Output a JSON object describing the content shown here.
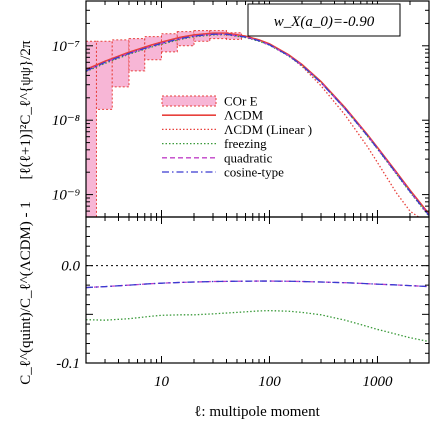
{
  "annotation": {
    "text": "w_X(a_0)=-0.90"
  },
  "chart_data": [
    {
      "type": "line",
      "panel": "top",
      "x_scale": "log",
      "y_scale": "log",
      "xlim": [
        2,
        3000
      ],
      "ylim": [
        5e-10,
        4e-07
      ],
      "ylabel": "[ℓ(ℓ+1)]²C_ℓ^{ψψ}/2π",
      "y_ticks": [
        {
          "value": 1e-07,
          "label": "10⁻⁷"
        },
        {
          "value": 1e-08,
          "label": "10⁻⁸"
        },
        {
          "value": 1e-09,
          "label": "10⁻⁹"
        }
      ],
      "legend": {
        "placement": "center-right",
        "entries": [
          "COr E",
          "ΛCDM",
          "ΛCDM (Linear )",
          "freezing",
          "quadratic",
          "cosine-type"
        ]
      },
      "series": [
        {
          "name": "ΛCDM",
          "color": "#e8413c",
          "style": "solid",
          "x": [
            2,
            3,
            5,
            8,
            10,
            15,
            20,
            30,
            40,
            60,
            80,
            100,
            150,
            200,
            300,
            500,
            800,
            1000,
            1500,
            2000,
            3000
          ],
          "y": [
            4.8e-08,
            6.2e-08,
            8.2e-08,
            1.02e-07,
            1.12e-07,
            1.3e-07,
            1.4e-07,
            1.48e-07,
            1.48e-07,
            1.35e-07,
            1.2e-07,
            1.06e-07,
            7.6e-08,
            5.6e-08,
            3.3e-08,
            1.48e-08,
            6.5e-09,
            4.3e-09,
            2e-09,
            1.15e-09,
            5.5e-10
          ]
        },
        {
          "name": "ΛCDM (Linear )",
          "color": "#e8413c",
          "style": "dotted",
          "x": [
            2,
            3,
            5,
            8,
            10,
            15,
            20,
            30,
            40,
            60,
            80,
            100,
            150,
            200,
            300,
            500,
            800,
            1000,
            1500,
            2000,
            3000
          ],
          "y": [
            4.8e-08,
            6.2e-08,
            8.2e-08,
            1.02e-07,
            1.12e-07,
            1.3e-07,
            1.4e-07,
            1.48e-07,
            1.48e-07,
            1.35e-07,
            1.2e-07,
            1.05e-07,
            7.4e-08,
            5.3e-08,
            2.9e-08,
            1.18e-08,
            4.5e-09,
            2.7e-09,
            1.05e-09,
            6e-10,
            4e-10
          ]
        },
        {
          "name": "freezing",
          "color": "#3a9a3a",
          "style": "dotted",
          "x": [
            2,
            3,
            5,
            8,
            10,
            15,
            20,
            30,
            40,
            60,
            80,
            100,
            150,
            200,
            300,
            500,
            800,
            1000,
            1500,
            2000,
            3000
          ],
          "y": [
            4.5e-08,
            5.8e-08,
            7.7e-08,
            9.6e-08,
            1.05e-07,
            1.22e-07,
            1.32e-07,
            1.4e-07,
            1.41e-07,
            1.29e-07,
            1.15e-07,
            1.02e-07,
            7.3e-08,
            5.4e-08,
            3.2e-08,
            1.42e-08,
            6.2e-09,
            4.1e-09,
            1.88e-09,
            1.08e-09,
            5.1e-10
          ]
        },
        {
          "name": "quadratic",
          "color": "#c040c8",
          "style": "dashed",
          "x": [
            2,
            3,
            5,
            8,
            10,
            15,
            20,
            30,
            40,
            60,
            80,
            100,
            150,
            200,
            300,
            500,
            800,
            1000,
            1500,
            2000,
            3000
          ],
          "y": [
            4.6e-08,
            6e-08,
            7.9e-08,
            9.8e-08,
            1.08e-07,
            1.25e-07,
            1.35e-07,
            1.43e-07,
            1.43e-07,
            1.31e-07,
            1.17e-07,
            1.03e-07,
            7.4e-08,
            5.45e-08,
            3.2e-08,
            1.43e-08,
            6.3e-09,
            4.15e-09,
            1.92e-09,
            1.1e-09,
            5.25e-10
          ]
        },
        {
          "name": "cosine-type",
          "color": "#3a3ad0",
          "style": "dashdot",
          "x": [
            2,
            3,
            5,
            8,
            10,
            15,
            20,
            30,
            40,
            60,
            80,
            100,
            150,
            200,
            300,
            500,
            800,
            1000,
            1500,
            2000,
            3000
          ],
          "y": [
            4.6e-08,
            6e-08,
            7.9e-08,
            9.8e-08,
            1.08e-07,
            1.25e-07,
            1.35e-07,
            1.43e-07,
            1.43e-07,
            1.31e-07,
            1.17e-07,
            1.03e-07,
            7.4e-08,
            5.45e-08,
            3.2e-08,
            1.43e-08,
            6.3e-09,
            4.15e-09,
            1.92e-09,
            1.1e-09,
            5.25e-10
          ]
        }
      ],
      "error_band": {
        "name": "COr E",
        "color": "#f7b6d6",
        "edge_color": "#e8413c",
        "bins": [
          {
            "lo": 2,
            "hi": 2.5,
            "lower": 5e-10,
            "upper": 1.15e-07
          },
          {
            "lo": 2.5,
            "hi": 3.5,
            "lower": 1.4e-08,
            "upper": 1.15e-07
          },
          {
            "lo": 3.5,
            "hi": 5,
            "lower": 2.8e-08,
            "upper": 1.2e-07
          },
          {
            "lo": 5,
            "hi": 7,
            "lower": 4.6e-08,
            "upper": 1.25e-07
          },
          {
            "lo": 7,
            "hi": 10,
            "lower": 6.5e-08,
            "upper": 1.33e-07
          },
          {
            "lo": 10,
            "hi": 14,
            "lower": 8.3e-08,
            "upper": 1.45e-07
          },
          {
            "lo": 14,
            "hi": 20,
            "lower": 1e-07,
            "upper": 1.55e-07
          },
          {
            "lo": 20,
            "hi": 28,
            "lower": 1.15e-07,
            "upper": 1.6e-07
          },
          {
            "lo": 28,
            "hi": 40,
            "lower": 1.25e-07,
            "upper": 1.6e-07
          },
          {
            "lo": 40,
            "hi": 55,
            "lower": 1.22e-07,
            "upper": 1.5e-07
          }
        ]
      }
    },
    {
      "type": "line",
      "panel": "bottom",
      "x_scale": "log",
      "xlim": [
        2,
        3000
      ],
      "ylim": [
        -0.1,
        0.05
      ],
      "xlabel": "ℓ: multipole moment",
      "ylabel": "C_ℓ^(quint)/C_ℓ^(ΛCDM) - 1",
      "x_ticks": [
        {
          "value": 10,
          "label": "10"
        },
        {
          "value": 100,
          "label": "100"
        },
        {
          "value": 1000,
          "label": "1000"
        }
      ],
      "y_ticks": [
        {
          "value": 0.0,
          "label": "0.0"
        },
        {
          "value": -0.1,
          "label": "-0.1"
        }
      ],
      "reference_line": {
        "y": 0.0,
        "color": "#000000",
        "style": "dotted"
      },
      "series": [
        {
          "name": "freezing",
          "color": "#3a9a3a",
          "style": "dotted",
          "x": [
            2,
            3,
            5,
            8,
            10,
            15,
            20,
            30,
            50,
            80,
            100,
            150,
            200,
            300,
            500,
            700,
            1000,
            1500,
            2000,
            3000
          ],
          "y": [
            -0.0555,
            -0.056,
            -0.0545,
            -0.052,
            -0.051,
            -0.0505,
            -0.0505,
            -0.0495,
            -0.048,
            -0.0465,
            -0.0462,
            -0.0468,
            -0.048,
            -0.0505,
            -0.056,
            -0.0605,
            -0.0655,
            -0.0705,
            -0.074,
            -0.078
          ]
        },
        {
          "name": "quadratic",
          "color": "#c040c8",
          "style": "dashed",
          "x": [
            2,
            3,
            5,
            8,
            10,
            15,
            20,
            30,
            50,
            80,
            100,
            150,
            200,
            300,
            500,
            700,
            1000,
            1500,
            2000,
            3000
          ],
          "y": [
            -0.0225,
            -0.0215,
            -0.02,
            -0.0185,
            -0.018,
            -0.0172,
            -0.0168,
            -0.0163,
            -0.016,
            -0.0158,
            -0.0158,
            -0.016,
            -0.0163,
            -0.0168,
            -0.0175,
            -0.0182,
            -0.019,
            -0.0198,
            -0.0205,
            -0.0215
          ]
        },
        {
          "name": "cosine-type",
          "color": "#3a3ad0",
          "style": "dashdot",
          "x": [
            2,
            3,
            5,
            8,
            10,
            15,
            20,
            30,
            50,
            80,
            100,
            150,
            200,
            300,
            500,
            700,
            1000,
            1500,
            2000,
            3000
          ],
          "y": [
            -0.0225,
            -0.0215,
            -0.02,
            -0.0185,
            -0.018,
            -0.0172,
            -0.0168,
            -0.0163,
            -0.016,
            -0.0158,
            -0.0158,
            -0.016,
            -0.0163,
            -0.0168,
            -0.0175,
            -0.0182,
            -0.019,
            -0.0198,
            -0.0205,
            -0.0215
          ]
        }
      ]
    }
  ]
}
